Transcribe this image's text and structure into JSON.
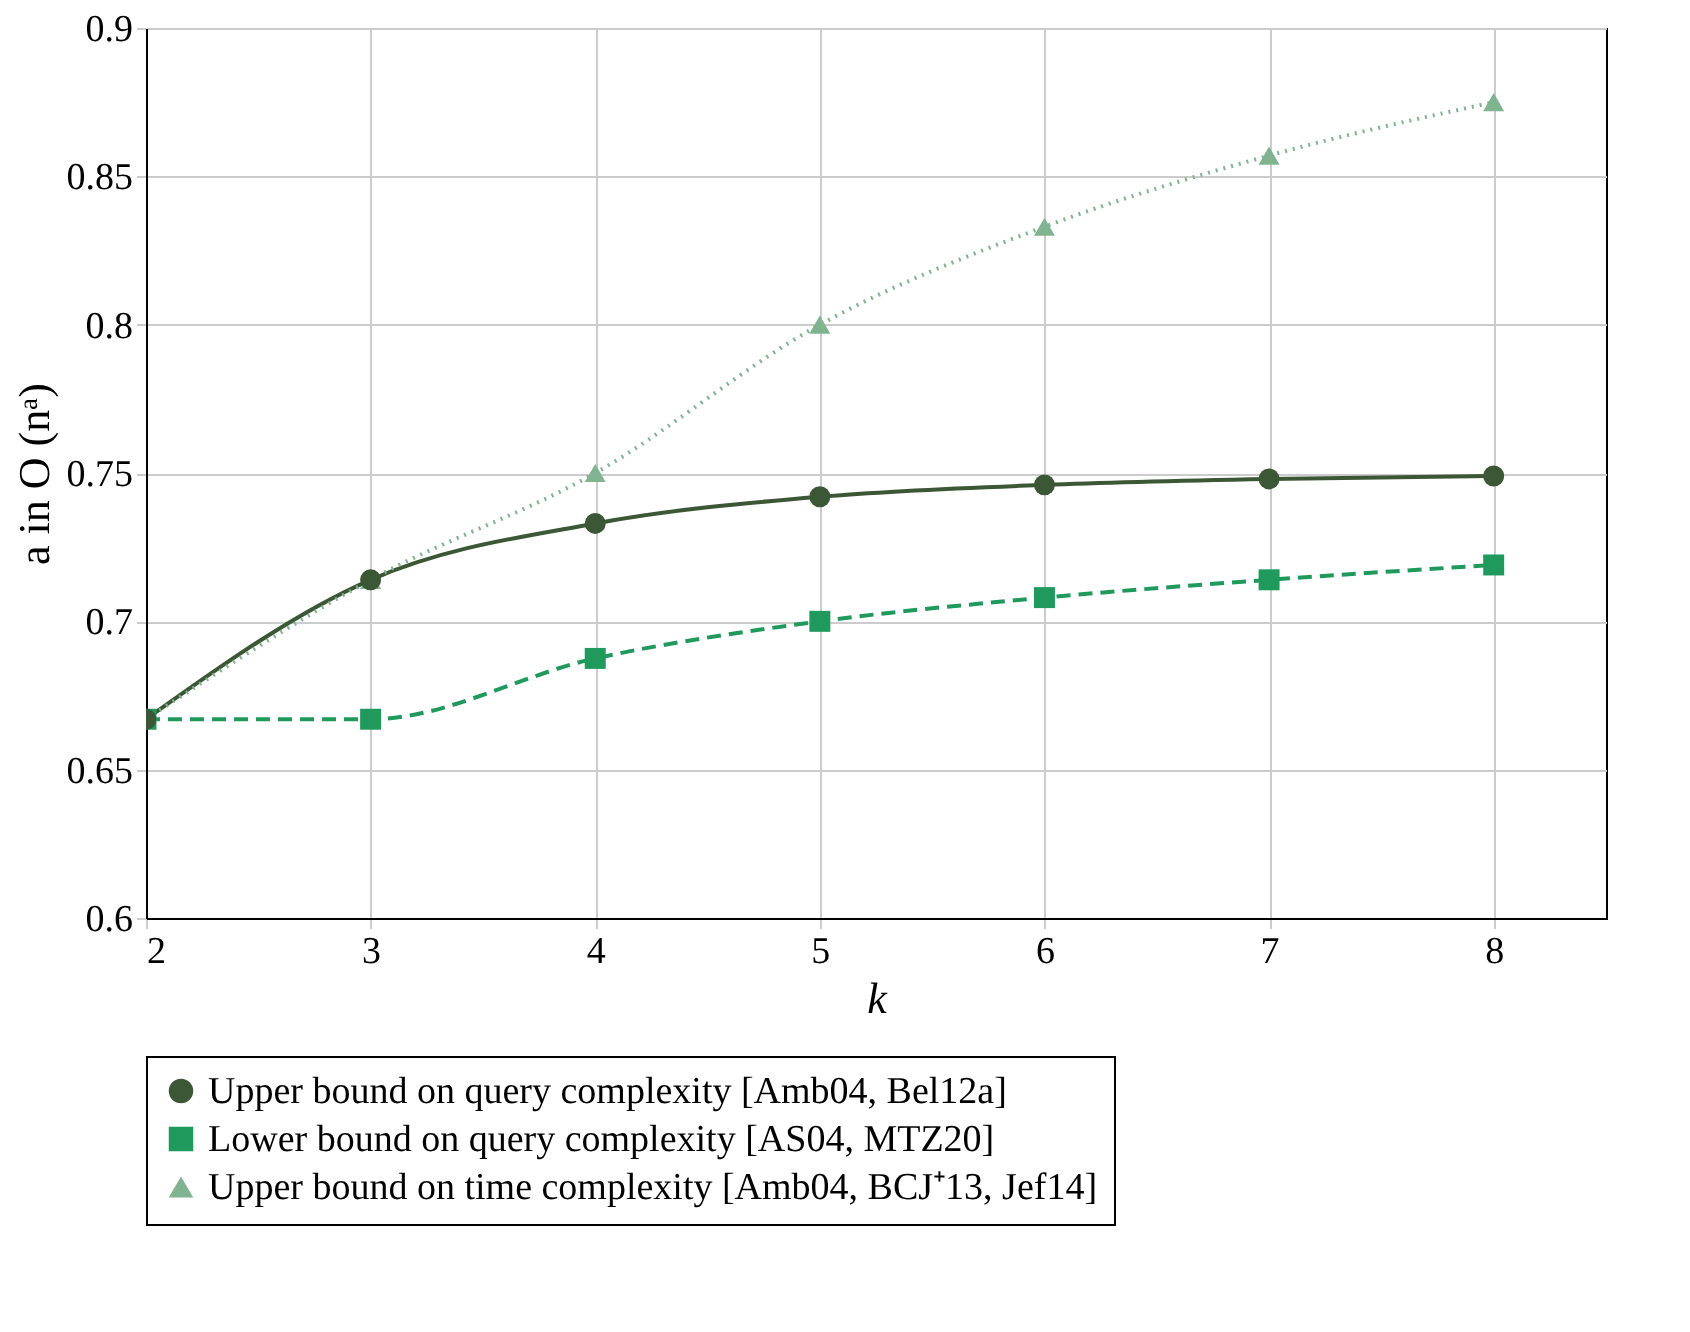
{
  "chart_data": {
    "type": "line",
    "xlabel": "k",
    "ylabel": "a in O (nᵃ)",
    "xlim": [
      2,
      8.5
    ],
    "xticks": [
      2,
      3,
      4,
      5,
      6,
      7,
      8
    ],
    "ylim": [
      0.6,
      0.9
    ],
    "yticks": [
      0.6,
      0.65,
      0.7,
      0.75,
      0.8,
      0.85,
      0.9
    ],
    "grid": true,
    "legend": "bottom",
    "x": [
      2,
      3,
      4,
      5,
      6,
      7,
      8
    ],
    "series": [
      {
        "name": "Upper bound on query complexity [Amb04, Bel12a]",
        "color": "#3b5735",
        "marker": "circle",
        "line_style": "solid",
        "values": [
          0.667,
          0.714,
          0.733,
          0.742,
          0.746,
          0.748,
          0.749
        ]
      },
      {
        "name": "Lower bound on query complexity [AS04, MTZ20]",
        "color": "#1f9a5c",
        "marker": "square",
        "line_style": "dashed",
        "values": [
          0.667,
          0.667,
          0.6875,
          0.7,
          0.708,
          0.714,
          0.719
        ]
      },
      {
        "name": "Upper bound on time complexity [Amb04, BCJ⁺13, Jef14]",
        "color": "#80b390",
        "marker": "triangle",
        "line_style": "dotted",
        "values": [
          0.667,
          0.714,
          0.75,
          0.8,
          0.833,
          0.857,
          0.875
        ]
      }
    ]
  }
}
